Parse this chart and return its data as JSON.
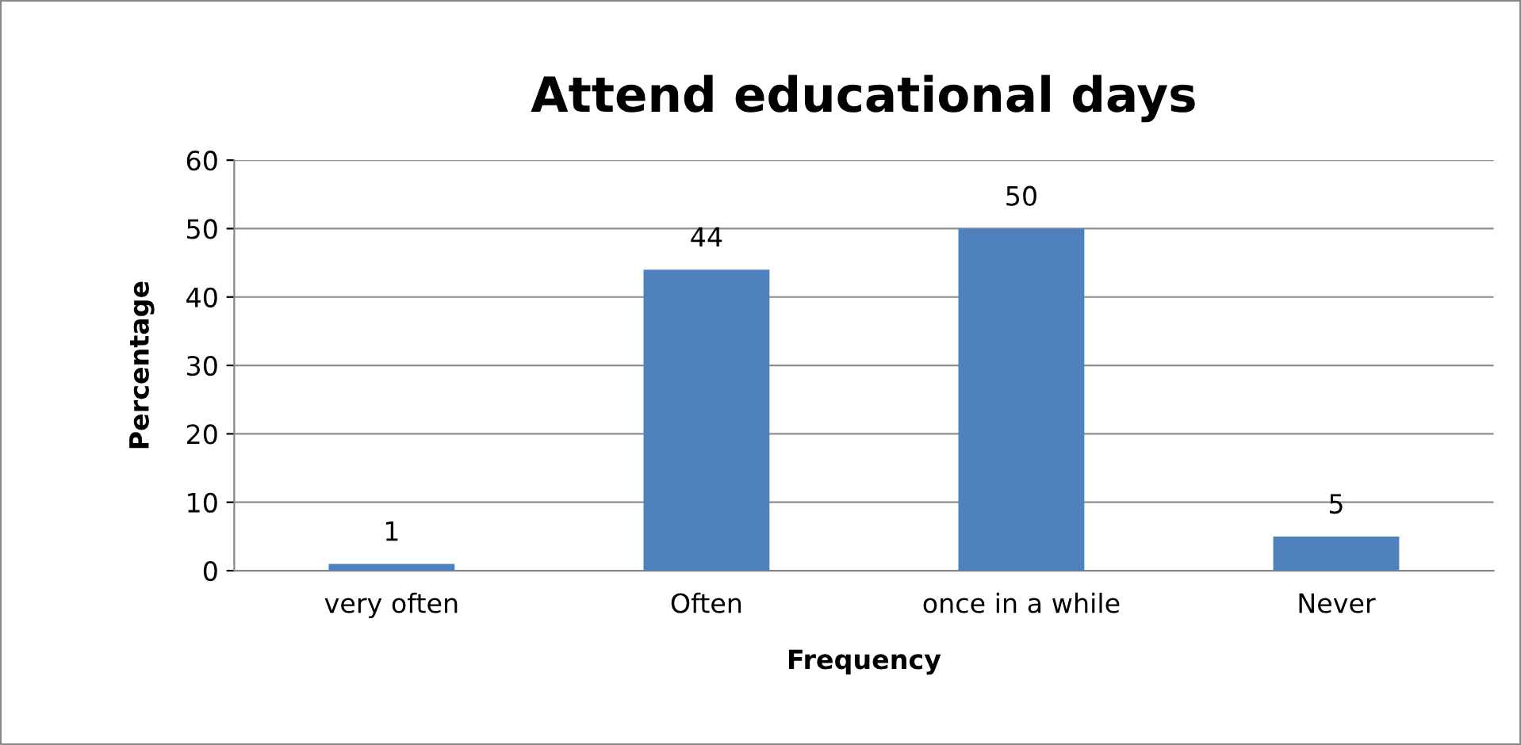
{
  "chart_data": {
    "type": "bar",
    "title": "Attend educational days",
    "xlabel": "Frequency",
    "ylabel": "Percentage",
    "categories": [
      "very often",
      "Often",
      "once in a while",
      "Never"
    ],
    "values": [
      1,
      44,
      50,
      5
    ],
    "color": "#4f81bd",
    "ylim": [
      0,
      60
    ],
    "yticks": [
      0,
      10,
      20,
      30,
      40,
      50,
      60
    ],
    "grid": "y",
    "data_labels": true,
    "legend": false
  }
}
